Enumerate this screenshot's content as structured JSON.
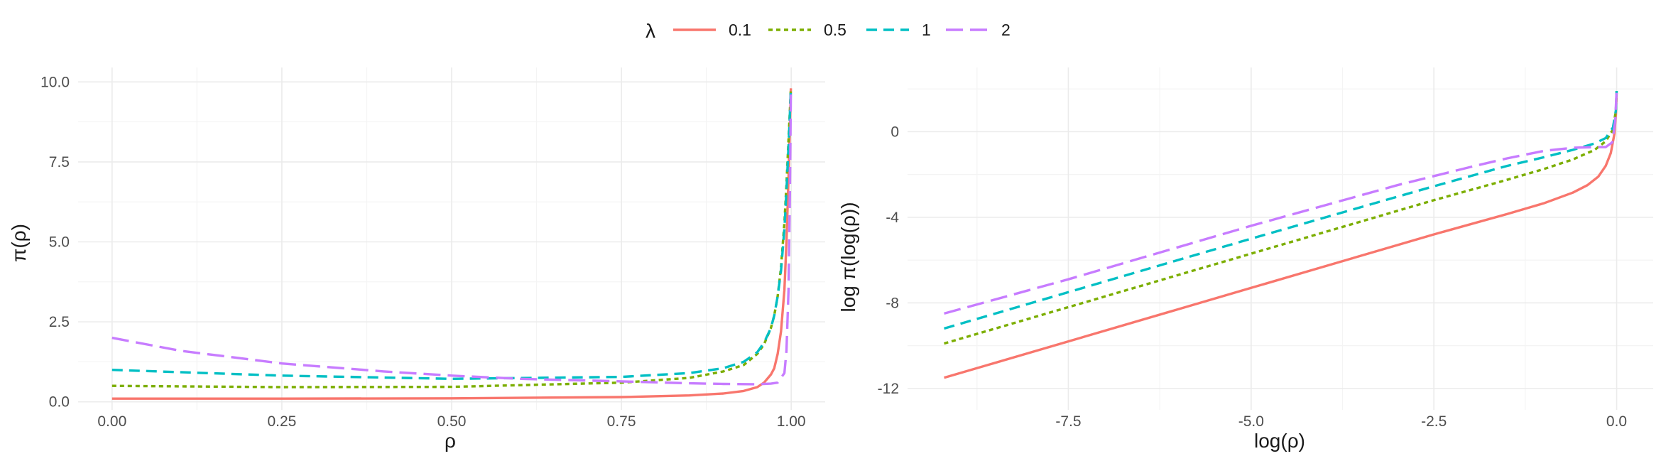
{
  "legend": {
    "title": "λ",
    "entries": [
      {
        "label": "0.1",
        "lambda": 0.1,
        "color": "#F8766D",
        "dash": "solid"
      },
      {
        "label": "0.5",
        "lambda": 0.5,
        "color": "#7CAE00",
        "dash": "dotted"
      },
      {
        "label": "1",
        "lambda": 1,
        "color": "#00BFC4",
        "dash": "dashed"
      },
      {
        "label": "2",
        "lambda": 2,
        "color": "#C77CFF",
        "dash": "longdash"
      }
    ]
  },
  "chart_data": [
    {
      "type": "line",
      "xlabel": "ρ",
      "ylabel": "π(ρ)",
      "xlim": [
        -0.05,
        1.05
      ],
      "ylim": [
        -0.25,
        10.45
      ],
      "x_ticks": [
        0.0,
        0.25,
        0.5,
        0.75,
        1.0
      ],
      "x_tick_labels": [
        "0.00",
        "0.25",
        "0.50",
        "0.75",
        "1.00"
      ],
      "y_ticks": [
        0.0,
        2.5,
        5.0,
        7.5,
        10.0
      ],
      "y_tick_labels": [
        "0.0",
        "2.5",
        "5.0",
        "7.5",
        "10.0"
      ],
      "grid": true,
      "series": [
        {
          "name": "0.1",
          "x": [
            0,
            0.25,
            0.5,
            0.75,
            0.85,
            0.9,
            0.93,
            0.95,
            0.96,
            0.97,
            0.975,
            0.98,
            0.985,
            0.99,
            0.993,
            0.996,
            0.998,
            0.9995
          ],
          "values": [
            0.1,
            0.1,
            0.11,
            0.15,
            0.2,
            0.26,
            0.34,
            0.46,
            0.6,
            0.85,
            1.05,
            1.5,
            2.2,
            3.5,
            5.0,
            7.0,
            8.6,
            9.8
          ]
        },
        {
          "name": "0.5",
          "x": [
            0,
            0.25,
            0.5,
            0.75,
            0.85,
            0.9,
            0.93,
            0.95,
            0.96,
            0.97,
            0.975,
            0.98,
            0.985,
            0.99,
            0.993,
            0.996,
            0.998,
            0.9995
          ],
          "values": [
            0.5,
            0.46,
            0.47,
            0.6,
            0.75,
            0.95,
            1.15,
            1.5,
            1.8,
            2.3,
            2.7,
            3.3,
            4.2,
            5.6,
            6.8,
            8.2,
            9.1,
            9.8
          ]
        },
        {
          "name": "1",
          "x": [
            0,
            0.25,
            0.5,
            0.75,
            0.85,
            0.9,
            0.93,
            0.95,
            0.96,
            0.97,
            0.975,
            0.98,
            0.985,
            0.99,
            0.993,
            0.996,
            0.998,
            0.9995
          ],
          "values": [
            1.0,
            0.82,
            0.72,
            0.78,
            0.9,
            1.05,
            1.25,
            1.55,
            1.85,
            2.3,
            2.7,
            3.3,
            4.1,
            5.4,
            6.6,
            8.0,
            9.0,
            9.8
          ]
        },
        {
          "name": "2",
          "x": [
            0,
            0.1,
            0.25,
            0.4,
            0.5,
            0.6,
            0.75,
            0.85,
            0.9,
            0.95,
            0.97,
            0.98,
            0.99,
            0.993,
            0.996,
            0.998,
            0.9995
          ],
          "values": [
            2.0,
            1.6,
            1.2,
            0.95,
            0.82,
            0.72,
            0.64,
            0.58,
            0.56,
            0.55,
            0.57,
            0.6,
            0.9,
            1.6,
            3.5,
            6.5,
            9.7
          ]
        }
      ]
    },
    {
      "type": "line",
      "xlabel": "log(ρ)",
      "ylabel": "log π(log(ρ))",
      "xlim": [
        -9.7,
        0.5
      ],
      "ylim": [
        -13.0,
        3.0
      ],
      "x_ticks": [
        -7.5,
        -5.0,
        -2.5,
        0.0
      ],
      "x_tick_labels": [
        "-7.5",
        "-5.0",
        "-2.5",
        "0.0"
      ],
      "y_ticks": [
        -12,
        -8,
        -4,
        0
      ],
      "y_tick_labels": [
        "-12",
        "-8",
        "-4",
        "0"
      ],
      "grid": true,
      "series": [
        {
          "name": "0.1",
          "x": [
            -9.2,
            -7.5,
            -5.0,
            -2.5,
            -1.5,
            -1.0,
            -0.6,
            -0.4,
            -0.25,
            -0.15,
            -0.08,
            -0.03,
            -0.01,
            0.0
          ],
          "values": [
            -11.5,
            -9.8,
            -7.3,
            -4.8,
            -3.85,
            -3.35,
            -2.85,
            -2.5,
            -2.1,
            -1.6,
            -1.0,
            -0.1,
            0.8,
            1.8
          ]
        },
        {
          "name": "0.5",
          "x": [
            -9.2,
            -7.5,
            -5.0,
            -2.5,
            -1.5,
            -1.0,
            -0.6,
            -0.3,
            -0.15,
            -0.05,
            -0.01,
            0.0
          ],
          "values": [
            -9.9,
            -8.2,
            -5.7,
            -3.2,
            -2.25,
            -1.75,
            -1.3,
            -0.85,
            -0.45,
            0.1,
            1.0,
            1.9
          ]
        },
        {
          "name": "1",
          "x": [
            -9.2,
            -7.5,
            -5.0,
            -2.5,
            -1.5,
            -1.0,
            -0.6,
            -0.3,
            -0.15,
            -0.05,
            -0.01,
            0.0
          ],
          "values": [
            -9.2,
            -7.5,
            -5.0,
            -2.55,
            -1.6,
            -1.2,
            -0.85,
            -0.55,
            -0.3,
            0.2,
            1.0,
            1.9
          ]
        },
        {
          "name": "2",
          "x": [
            -9.2,
            -7.5,
            -5.0,
            -3.0,
            -2.0,
            -1.5,
            -1.0,
            -0.6,
            -0.3,
            -0.15,
            -0.06,
            -0.02,
            0.0
          ],
          "values": [
            -8.5,
            -6.9,
            -4.4,
            -2.5,
            -1.65,
            -1.25,
            -0.9,
            -0.75,
            -0.72,
            -0.72,
            -0.5,
            0.5,
            1.9
          ]
        }
      ]
    }
  ]
}
